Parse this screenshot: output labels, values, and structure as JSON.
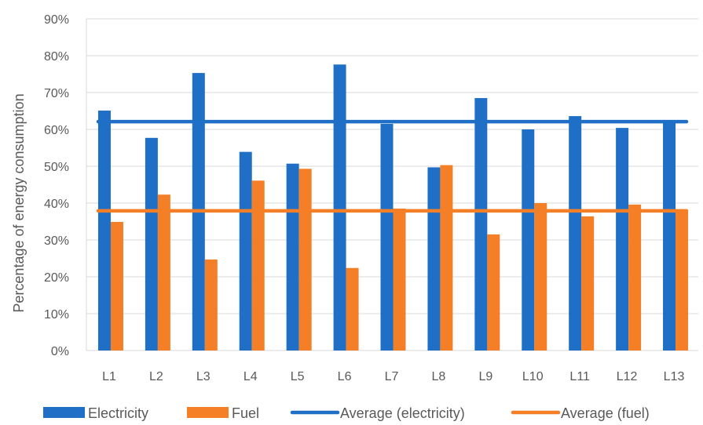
{
  "chart_data": {
    "type": "bar",
    "title": "",
    "xlabel": "",
    "ylabel": "Percentage of energy consumption",
    "ylim": [
      0,
      90
    ],
    "yticks": [
      "0%",
      "10%",
      "20%",
      "30%",
      "40%",
      "50%",
      "60%",
      "70%",
      "80%",
      "90%"
    ],
    "grid": true,
    "legend_position": "bottom",
    "categories": [
      "L1",
      "L2",
      "L3",
      "L4",
      "L5",
      "L6",
      "L7",
      "L8",
      "L9",
      "L10",
      "L11",
      "L12",
      "L13"
    ],
    "series": [
      {
        "name": "Electricity",
        "kind": "bar",
        "color": "#1f6fc6",
        "values": [
          65.1,
          57.7,
          75.3,
          53.9,
          50.7,
          77.6,
          61.5,
          49.7,
          68.5,
          60.0,
          63.6,
          60.4,
          62.2
        ]
      },
      {
        "name": "Fuel",
        "kind": "bar",
        "color": "#f57f26",
        "values": [
          34.9,
          42.3,
          24.7,
          46.1,
          49.3,
          22.4,
          38.5,
          50.3,
          31.5,
          40.0,
          36.4,
          39.6,
          37.8
        ]
      },
      {
        "name": "Average (electricity)",
        "kind": "line",
        "color": "#1f6fc6",
        "value": 62.1
      },
      {
        "name": "Average (fuel)",
        "kind": "line",
        "color": "#f57f26",
        "value": 37.9
      }
    ]
  }
}
